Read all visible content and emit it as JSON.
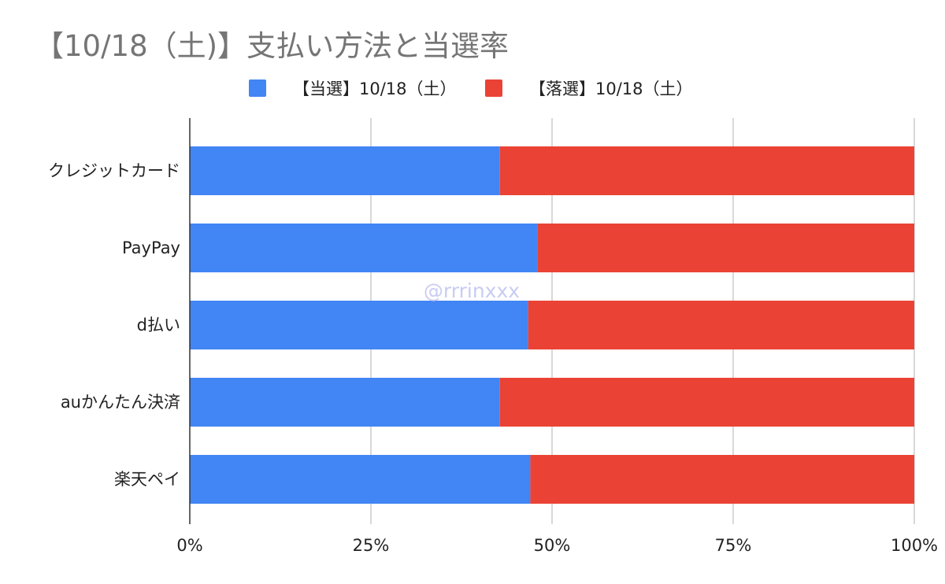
{
  "chart_data": {
    "type": "bar",
    "orientation": "horizontal",
    "stacked": "percent",
    "title": "【10/18（土)】支払い方法と当選率",
    "categories": [
      "クレジットカード",
      "PayPay",
      "d払い",
      "auかんたん決済",
      "楽天ペイ"
    ],
    "series": [
      {
        "name": "【当選】10/18（土）",
        "color": "#4285f4",
        "values": [
          42.8,
          48.0,
          46.7,
          42.8,
          47.0
        ]
      },
      {
        "name": "【落選】10/18（土）",
        "color": "#ea4335",
        "values": [
          57.2,
          52.0,
          53.3,
          57.2,
          53.0
        ]
      }
    ],
    "x_ticks": [
      "0%",
      "25%",
      "50%",
      "75%",
      "100%"
    ],
    "xlim": [
      0,
      100
    ],
    "grid": true,
    "legend_position": "top",
    "watermark": "@rrrinxxx"
  }
}
